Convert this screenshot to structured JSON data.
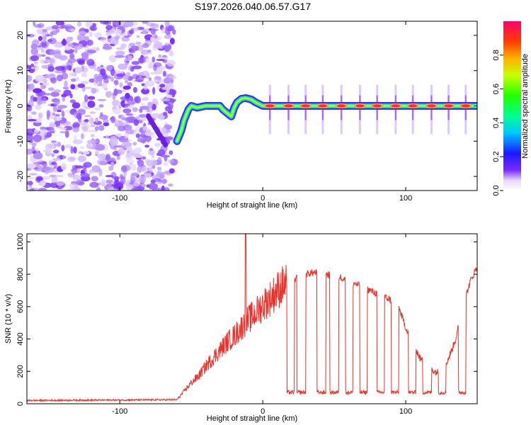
{
  "title": "S197.2026.040.06.57.G17",
  "chart_data": [
    {
      "type": "heatmap",
      "xlabel": "Height of straight line (km)",
      "ylabel": "Frequency (Hz)",
      "xlim": [
        -165,
        150
      ],
      "ylim": [
        -24,
        24
      ],
      "xticks": [
        {
          "v": -100,
          "label": "-100"
        },
        {
          "v": 0,
          "label": "0"
        },
        {
          "v": 100,
          "label": "100"
        }
      ],
      "yticks": [
        {
          "v": -20,
          "label": "-20"
        },
        {
          "v": -10,
          "label": "-10"
        },
        {
          "v": 0,
          "label": "0"
        },
        {
          "v": 10,
          "label": "10"
        },
        {
          "v": 20,
          "label": "20"
        }
      ],
      "colorbar": {
        "label": "Normalized spectral amplitude",
        "range": [
          0,
          1
        ],
        "ticks": [
          {
            "v": 0.0,
            "label": "0.0"
          },
          {
            "v": 0.2,
            "label": "0.2"
          },
          {
            "v": 0.4,
            "label": "0.4"
          },
          {
            "v": 0.6,
            "label": "0.6"
          },
          {
            "v": 0.8,
            "label": "0.8"
          }
        ]
      },
      "ridge": {
        "x": [
          -60,
          -57,
          -55,
          -52,
          -50,
          -46,
          -40,
          -35,
          -30,
          -28,
          -25,
          -22,
          -20,
          -18,
          -15,
          -12,
          -8,
          -5,
          0,
          150
        ],
        "y": [
          -10,
          -7,
          -4,
          -1,
          0,
          -0.5,
          0,
          0,
          0,
          -1,
          -2,
          -3,
          -0.5,
          1,
          2,
          2.2,
          1.8,
          1,
          0,
          0
        ]
      },
      "pulses_x": [
        5,
        18,
        30,
        42,
        55,
        68,
        80,
        93,
        105,
        118,
        130,
        142
      ]
    },
    {
      "type": "line",
      "xlabel": "Height of straight line (km)",
      "ylabel": "SNR (10 * v/v)",
      "xlim": [
        -165,
        150
      ],
      "ylim": [
        0,
        1050
      ],
      "xticks": [
        {
          "v": -100,
          "label": "-100"
        },
        {
          "v": 0,
          "label": "0"
        },
        {
          "v": 100,
          "label": "100"
        }
      ],
      "yticks": [
        {
          "v": 0,
          "label": "0"
        },
        {
          "v": 200,
          "label": "200"
        },
        {
          "v": 400,
          "label": "400"
        },
        {
          "v": 600,
          "label": "600"
        },
        {
          "v": 800,
          "label": "800"
        },
        {
          "v": 1000,
          "label": "1000"
        }
      ],
      "color": "#e8322b",
      "envelope": {
        "x": [
          -165,
          -60,
          -50,
          -45,
          -40,
          -35,
          -30,
          -25,
          -20,
          -15,
          -10,
          -5,
          0,
          5,
          10,
          15,
          20,
          25,
          30,
          35,
          40,
          45,
          50,
          55,
          60,
          65,
          70,
          75,
          80,
          85,
          90,
          95,
          100,
          105,
          110,
          115,
          120,
          125,
          130,
          135,
          140,
          145,
          150
        ],
        "y": [
          20,
          25,
          130,
          170,
          230,
          280,
          330,
          380,
          420,
          470,
          520,
          560,
          610,
          650,
          700,
          740,
          760,
          780,
          800,
          810,
          810,
          800,
          790,
          780,
          760,
          740,
          720,
          700,
          680,
          660,
          640,
          600,
          470,
          380,
          280,
          240,
          200,
          190,
          280,
          400,
          600,
          750,
          850
        ]
      },
      "spike": {
        "x": -12,
        "y": 1050
      },
      "dips": [
        [
          17,
          22
        ],
        [
          24,
          30
        ],
        [
          38,
          44
        ],
        [
          47,
          53
        ],
        [
          58,
          63
        ],
        [
          68,
          73
        ],
        [
          80,
          85
        ],
        [
          90,
          95
        ],
        [
          102,
          107
        ],
        [
          112,
          118
        ],
        [
          123,
          128
        ],
        [
          137,
          142
        ]
      ],
      "dip_level": 70
    }
  ]
}
